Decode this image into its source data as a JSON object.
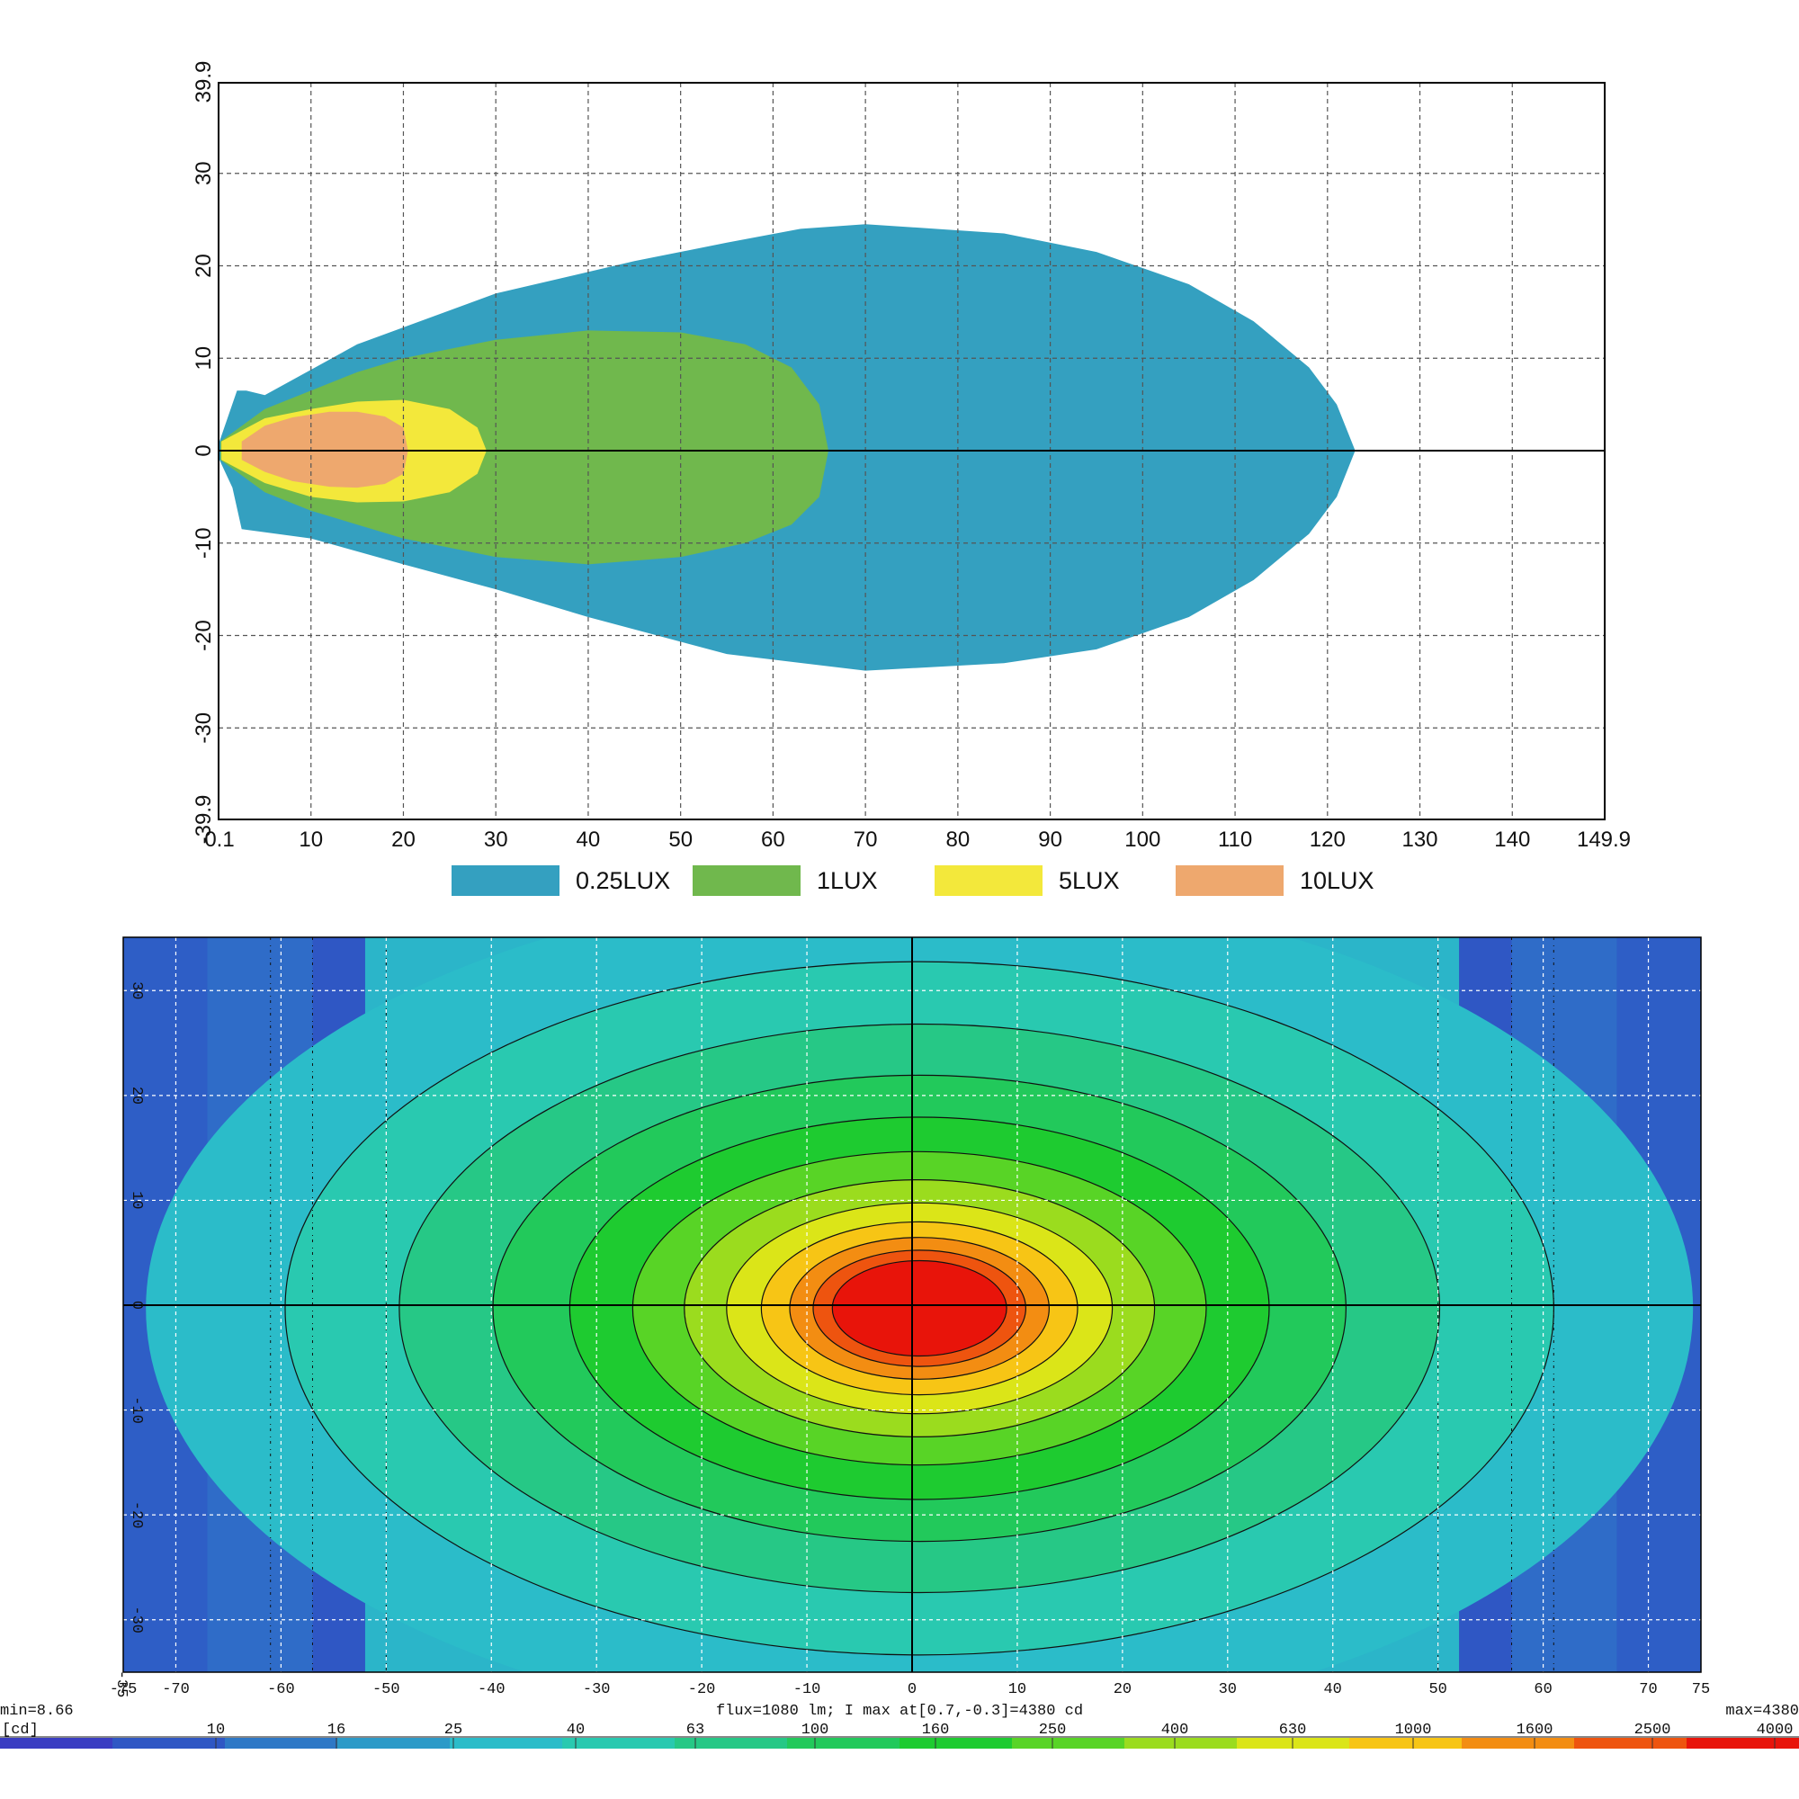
{
  "chart_data": [
    {
      "type": "area",
      "xlim": [
        0.1,
        149.9
      ],
      "ylim": [
        -39.9,
        39.9
      ],
      "x_ticks": [
        "0.1",
        "10",
        "20",
        "30",
        "40",
        "50",
        "60",
        "70",
        "80",
        "90",
        "100",
        "110",
        "120",
        "130",
        "140",
        "149.9"
      ],
      "y_ticks": [
        "39.9",
        "30",
        "20",
        "10",
        "0",
        "-10",
        "-20",
        "-30",
        "-39.9"
      ],
      "grid": true,
      "legend_position": "bottom",
      "series": [
        {
          "name": "0.25LUX",
          "color": "#34a0c0",
          "points": [
            [
              0.1,
              1
            ],
            [
              2,
              6.5
            ],
            [
              3,
              6.5
            ],
            [
              5,
              6
            ],
            [
              15,
              11.5
            ],
            [
              30,
              17
            ],
            [
              45,
              20.5
            ],
            [
              55,
              22.5
            ],
            [
              63,
              24
            ],
            [
              70,
              24.5
            ],
            [
              85,
              23.5
            ],
            [
              95,
              21.5
            ],
            [
              105,
              18
            ],
            [
              112,
              14
            ],
            [
              118,
              9
            ],
            [
              121,
              5
            ],
            [
              123,
              0
            ],
            [
              121,
              -5
            ],
            [
              118,
              -9
            ],
            [
              112,
              -14
            ],
            [
              105,
              -18
            ],
            [
              95,
              -21.5
            ],
            [
              85,
              -23
            ],
            [
              70,
              -23.8
            ],
            [
              55,
              -22
            ],
            [
              40,
              -18
            ],
            [
              30,
              -15
            ],
            [
              20,
              -12.3
            ],
            [
              10,
              -9.5
            ],
            [
              2.5,
              -8.5
            ],
            [
              1.5,
              -4
            ],
            [
              0.1,
              -1
            ]
          ]
        },
        {
          "name": "1LUX",
          "color": "#70b84d",
          "points": [
            [
              0.2,
              1
            ],
            [
              5,
              4.5
            ],
            [
              10,
              6.5
            ],
            [
              15,
              8.5
            ],
            [
              20,
              10
            ],
            [
              30,
              12
            ],
            [
              40,
              13
            ],
            [
              50,
              12.8
            ],
            [
              57,
              11.5
            ],
            [
              62,
              9
            ],
            [
              65,
              5
            ],
            [
              66,
              0
            ],
            [
              65,
              -5
            ],
            [
              62,
              -8
            ],
            [
              57,
              -10
            ],
            [
              50,
              -11.5
            ],
            [
              40,
              -12.3
            ],
            [
              30,
              -11.5
            ],
            [
              20,
              -9.5
            ],
            [
              15,
              -8
            ],
            [
              10,
              -6.5
            ],
            [
              5,
              -4.5
            ],
            [
              0.2,
              -1
            ]
          ]
        },
        {
          "name": "5LUX",
          "color": "#f3e83b",
          "points": [
            [
              0.3,
              1
            ],
            [
              5,
              3.5
            ],
            [
              10,
              4.5
            ],
            [
              15,
              5.3
            ],
            [
              20,
              5.5
            ],
            [
              25,
              4.5
            ],
            [
              28,
              2.5
            ],
            [
              29,
              0
            ],
            [
              28,
              -2.5
            ],
            [
              25,
              -4.5
            ],
            [
              20,
              -5.5
            ],
            [
              15,
              -5.6
            ],
            [
              10,
              -5
            ],
            [
              5,
              -3.5
            ],
            [
              0.3,
              -1
            ]
          ]
        },
        {
          "name": "10LUX",
          "color": "#eea86e",
          "points": [
            [
              2.5,
              1
            ],
            [
              5,
              2.7
            ],
            [
              8,
              3.6
            ],
            [
              12,
              4.2
            ],
            [
              15,
              4.2
            ],
            [
              18,
              3.7
            ],
            [
              20,
              2.5
            ],
            [
              20.5,
              0
            ],
            [
              20,
              -2.5
            ],
            [
              18,
              -3.6
            ],
            [
              15,
              -4
            ],
            [
              12,
              -3.9
            ],
            [
              8,
              -3.3
            ],
            [
              5,
              -2.3
            ],
            [
              2.5,
              -1
            ]
          ]
        }
      ]
    },
    {
      "type": "heatmap",
      "xlim": [
        -75,
        75
      ],
      "ylim": [
        -35,
        35
      ],
      "x_ticks": [
        "-75",
        "-70",
        "-60",
        "-50",
        "-40",
        "-30",
        "-20",
        "-10",
        "0",
        "10",
        "20",
        "30",
        "40",
        "50",
        "60",
        "70",
        "75"
      ],
      "y_ticks": [
        "30",
        "20",
        "10",
        "0",
        "-10",
        "-20",
        "-30"
      ],
      "y_tick_corner": "-35",
      "grid": true,
      "min_label": "min=8.66",
      "max_label": "max=4380",
      "unit_label": "[cd]",
      "info_text": "flux=1080 lm; I max at[0.7,-0.3]=4380 cd",
      "peak": {
        "x": 0.7,
        "y": -0.3,
        "value": 4380
      },
      "contour_levels": [
        8.66,
        10,
        16,
        25,
        40,
        63,
        100,
        160,
        250,
        400,
        630,
        1000,
        1600,
        2500,
        4000
      ],
      "colorbar_ticks": [
        "10",
        "16",
        "25",
        "40",
        "63",
        "100",
        "160",
        "250",
        "400",
        "630",
        "1000",
        "1600",
        "2500",
        "4000"
      ],
      "colorbar_colors": [
        "#3a3dc2",
        "#2f57c4",
        "#2e78c6",
        "#2c9ac8",
        "#2bbcc9",
        "#29c9b0",
        "#26c886",
        "#22c95b",
        "#1ecb30",
        "#58d426",
        "#9bdc1e",
        "#dbe518",
        "#f7c515",
        "#f38d12",
        "#ee540f",
        "#e8140a"
      ]
    }
  ]
}
